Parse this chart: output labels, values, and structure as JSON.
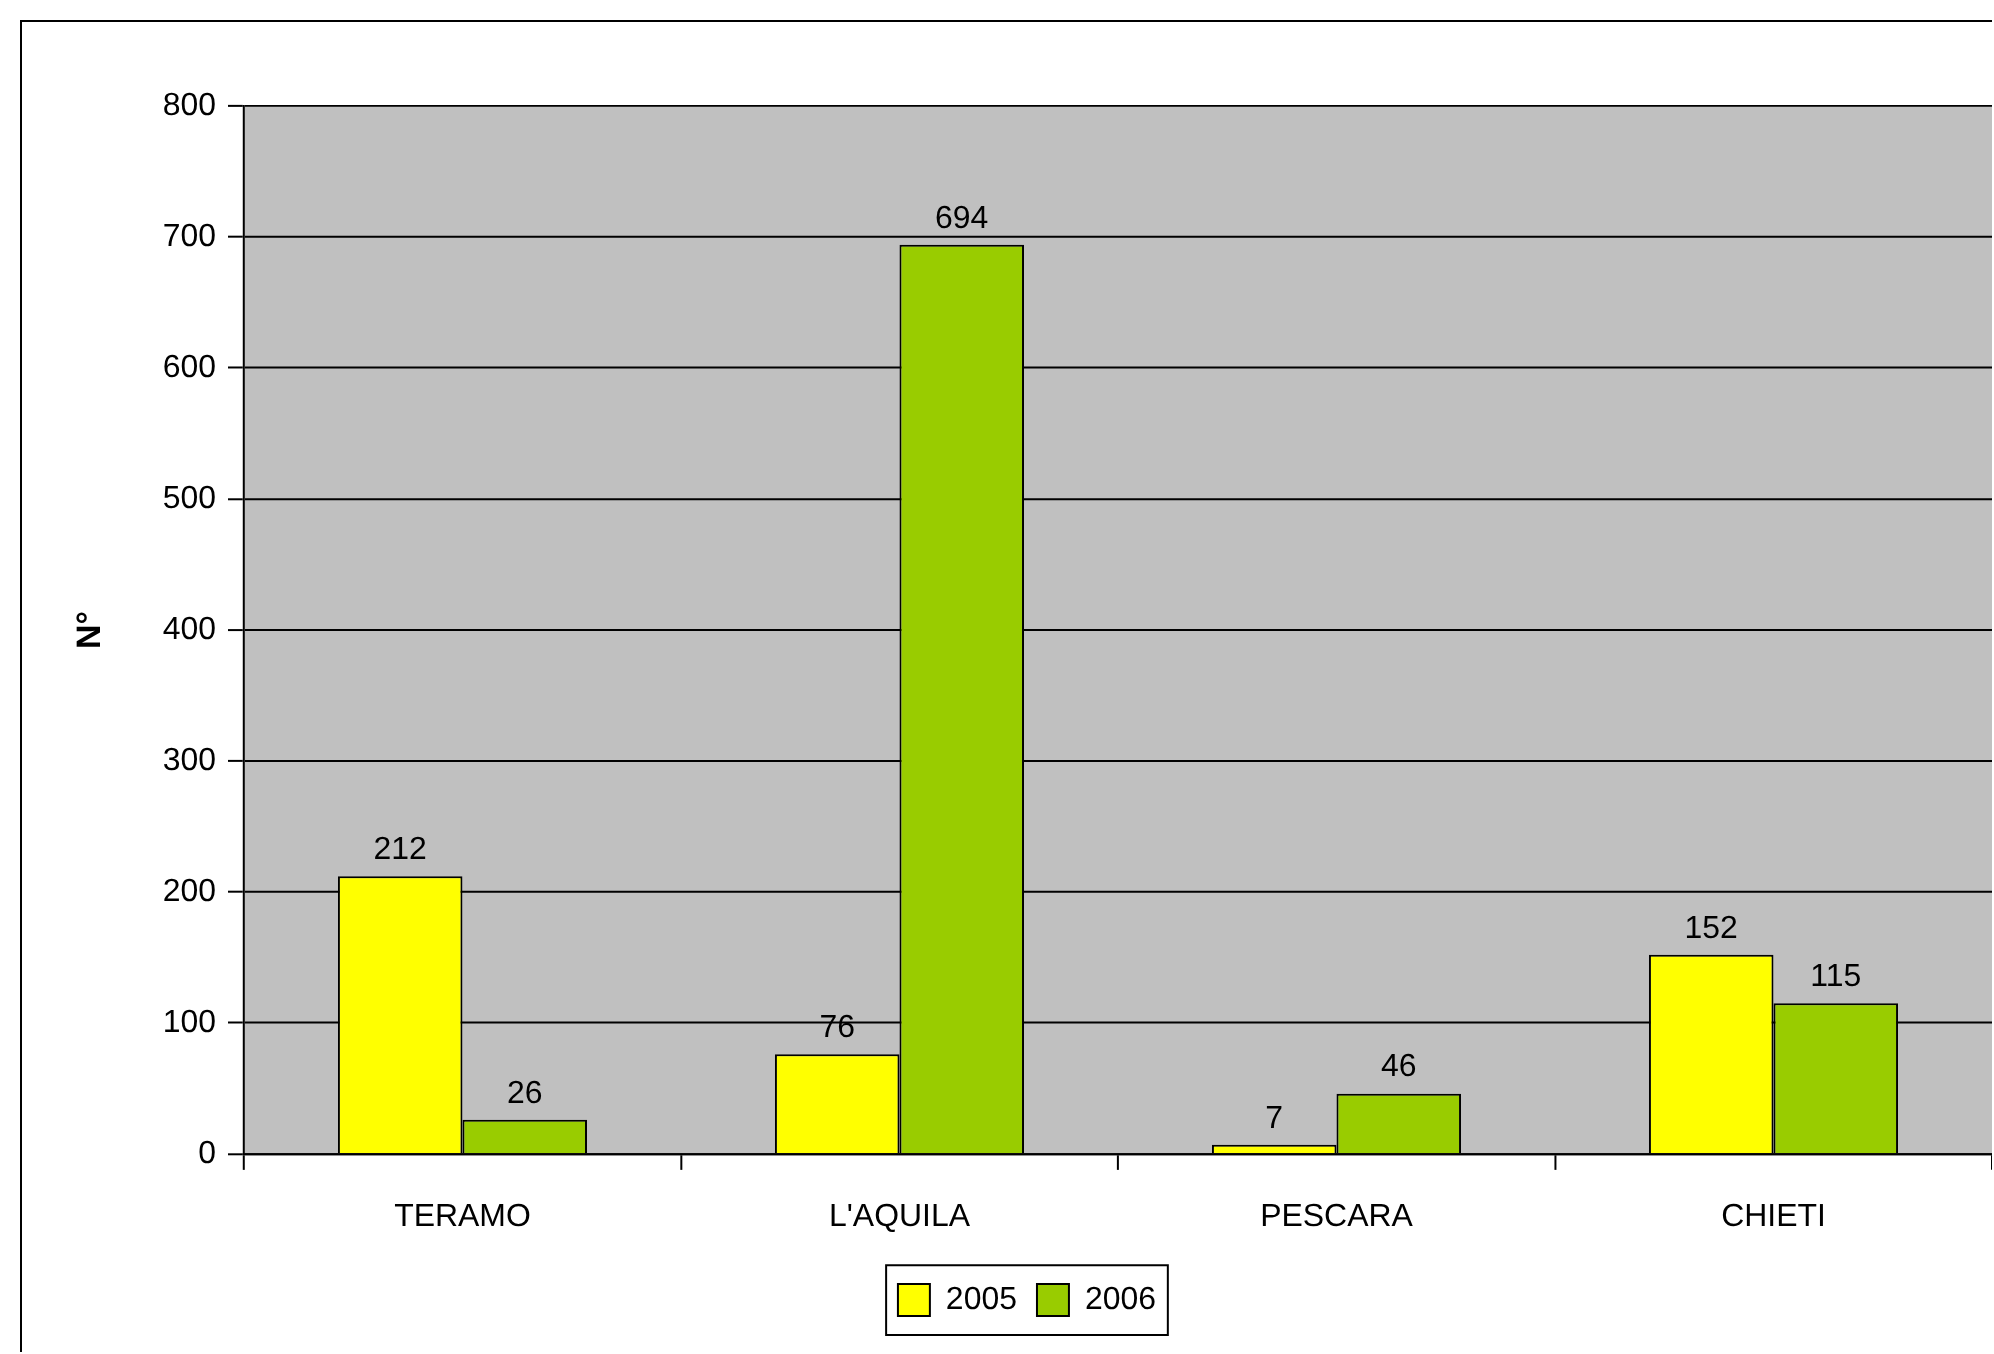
{
  "chart_data": {
    "type": "bar",
    "ylabel": "N°",
    "categories": [
      "TERAMO",
      "L'AQUILA",
      "PESCARA",
      "CHIETI"
    ],
    "series": [
      {
        "name": "2005",
        "color": "#ffff00",
        "values": [
          212,
          76,
          7,
          152
        ]
      },
      {
        "name": "2006",
        "color": "#99cc00",
        "values": [
          26,
          694,
          46,
          115
        ]
      }
    ],
    "ylim": [
      0,
      800
    ],
    "yticks": [
      0,
      100,
      200,
      300,
      400,
      500,
      600,
      700,
      800
    ],
    "grid": "y",
    "legend": "bottom",
    "data_labels": true
  }
}
